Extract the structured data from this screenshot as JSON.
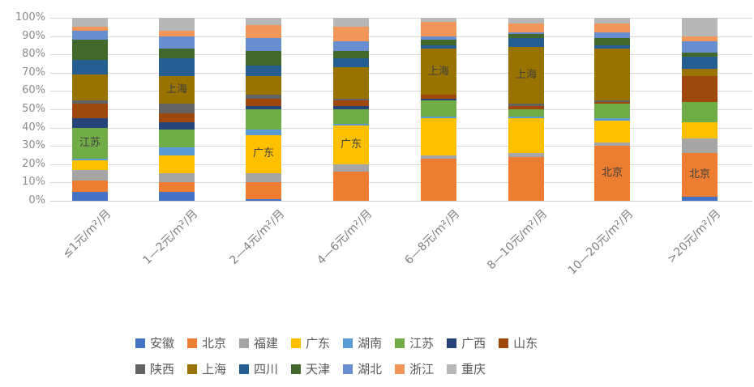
{
  "chart_data": {
    "type": "bar",
    "variant": "stacked-100-percent",
    "title": "",
    "xlabel": "",
    "ylabel": "",
    "ylim": [
      0,
      100
    ],
    "grid": true,
    "legend_position": "bottom",
    "y_ticks": [
      "0%",
      "10%",
      "20%",
      "30%",
      "40%",
      "50%",
      "60%",
      "70%",
      "80%",
      "90%",
      "100%"
    ],
    "categories": [
      "≤1元/m²/月",
      "1—2元/m²/月",
      "2—4元/m²/月",
      "4—6元/m²/月",
      "6—8元/m²/月",
      "8—10元/m²/月",
      "10—20元/m²/月",
      ">20元/m²/月"
    ],
    "series": [
      {
        "name": "安徽",
        "color": "#4472C4",
        "values": [
          5,
          5,
          1,
          0,
          0,
          0,
          0,
          2
        ]
      },
      {
        "name": "北京",
        "color": "#ED7D31",
        "values": [
          6,
          5,
          9,
          16,
          23,
          24,
          30,
          24
        ]
      },
      {
        "name": "福建",
        "color": "#A5A5A5",
        "values": [
          6,
          5,
          5,
          4,
          2,
          2,
          2,
          8
        ]
      },
      {
        "name": "广东",
        "color": "#FFC000",
        "values": [
          5,
          10,
          21,
          21,
          20,
          19,
          12,
          9
        ]
      },
      {
        "name": "湖南",
        "color": "#5B9BD5",
        "values": [
          1,
          4,
          3,
          1,
          1,
          1,
          1,
          0
        ]
      },
      {
        "name": "江苏",
        "color": "#70AD47",
        "values": [
          17,
          10,
          11,
          8,
          9,
          4,
          8,
          11
        ]
      },
      {
        "name": "广西",
        "color": "#264478",
        "values": [
          5,
          4,
          2,
          2,
          1,
          0,
          0,
          0
        ]
      },
      {
        "name": "山东",
        "color": "#9E480E",
        "values": [
          8,
          5,
          4,
          3,
          2,
          2,
          1,
          14
        ]
      },
      {
        "name": "陕西",
        "color": "#636363",
        "values": [
          2,
          5,
          2,
          1,
          0,
          1,
          1,
          0
        ]
      },
      {
        "name": "上海",
        "color": "#997300",
        "values": [
          14,
          15,
          10,
          17,
          25,
          31,
          28,
          4
        ]
      },
      {
        "name": "四川",
        "color": "#255E91",
        "values": [
          8,
          10,
          6,
          5,
          2,
          5,
          2,
          7
        ]
      },
      {
        "name": "天津",
        "color": "#43682B",
        "values": [
          11,
          5,
          8,
          4,
          3,
          2,
          4,
          2
        ]
      },
      {
        "name": "湖北",
        "color": "#698ED0",
        "values": [
          5,
          7,
          7,
          5,
          2,
          1,
          3,
          6
        ]
      },
      {
        "name": "浙江",
        "color": "#F1975A",
        "values": [
          2,
          3,
          7,
          8,
          8,
          5,
          5,
          3
        ]
      },
      {
        "name": "重庆",
        "color": "#B7B7B7",
        "values": [
          5,
          7,
          4,
          5,
          2,
          3,
          3,
          10
        ]
      }
    ],
    "bar_labels": [
      {
        "category_index": 0,
        "series": "江苏",
        "text": "江苏"
      },
      {
        "category_index": 1,
        "series": "上海",
        "text": "上海"
      },
      {
        "category_index": 2,
        "series": "广东",
        "text": "广东"
      },
      {
        "category_index": 3,
        "series": "广东",
        "text": "广东"
      },
      {
        "category_index": 4,
        "series": "上海",
        "text": "上海"
      },
      {
        "category_index": 5,
        "series": "上海",
        "text": "上海"
      },
      {
        "category_index": 6,
        "series": "北京",
        "text": "北京"
      },
      {
        "category_index": 7,
        "series": "北京",
        "text": "北京"
      }
    ],
    "legend_rows": [
      [
        "安徽",
        "北京",
        "福建",
        "广东",
        "湖南",
        "江苏",
        "广西",
        "山东"
      ],
      [
        "陕西",
        "上海",
        "四川",
        "天津",
        "湖北",
        "浙江",
        "重庆"
      ]
    ],
    "colors_meta": {
      "gridline": "#D9D9D9",
      "axis_text": "#8C8C8C",
      "x_axis_text": "#7F7F7F",
      "bar_label_text": "#404040",
      "legend_text": "#595959",
      "background": "#FFFFFF"
    }
  }
}
